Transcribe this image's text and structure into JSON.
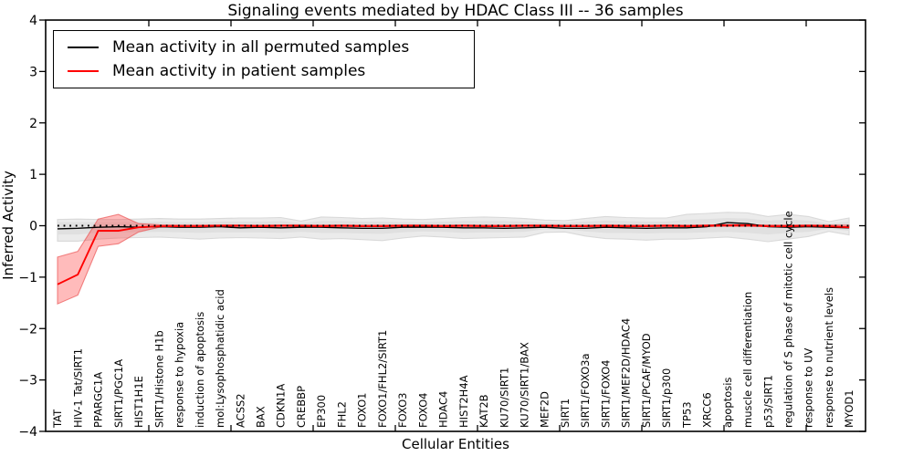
{
  "title": "Signaling events mediated by HDAC Class III -- 36 samples",
  "legend": {
    "entries": [
      {
        "label": "Mean activity in all permuted samples",
        "color": "#000000"
      },
      {
        "label": "Mean activity in patient samples",
        "color": "#ff0000"
      }
    ],
    "position": "upper left"
  },
  "axes": {
    "xlabel": "Cellular Entities",
    "ylabel": "Inferred Activity",
    "yticks": [
      4,
      3,
      2,
      1,
      0,
      -1,
      -2,
      -3,
      -4
    ],
    "ylim": [
      -4,
      4
    ],
    "grid": false
  },
  "chart_data": {
    "type": "line",
    "title": "Signaling events mediated by HDAC Class III -- 36 samples",
    "xlabel": "Cellular Entities",
    "ylabel": "Inferred Activity",
    "ylim": [
      -4,
      4
    ],
    "zero_line": 0,
    "categories": [
      "TAT",
      "HIV-1 Tat/SIRT1",
      "PPARGC1A",
      "SIRT1/PGC1A",
      "HIST1H1E",
      "SIRT1/Histone H1b",
      "response to hypoxia",
      "induction of apoptosis",
      "mol:Lysophosphatidic acid",
      "ACSS2",
      "BAX",
      "CDKN1A",
      "CREBBP",
      "EP300",
      "FHL2",
      "FOXO1",
      "FOXO1/FHL2/SIRT1",
      "FOXO3",
      "FOXO4",
      "HDAC4",
      "HIST2H4A",
      "KAT2B",
      "KU70/SIRT1",
      "KU70/SIRT1/BAX",
      "MEF2D",
      "SIRT1",
      "SIRT1/FOXO3a",
      "SIRT1/FOXO4",
      "SIRT1/MEF2D/HDAC4",
      "SIRT1/PCAF/MYOD",
      "SIRT1/p300",
      "TP53",
      "XRCC6",
      "apoptosis",
      "muscle cell differentiation",
      "p53/SIRT1",
      "regulation of S phase of mitotic cell cycle",
      "response to UV",
      "response to nutrient levels",
      "MYOD1"
    ],
    "series": [
      {
        "name": "Mean activity in all permuted samples",
        "color": "#000000",
        "values": [
          -0.06,
          -0.05,
          -0.03,
          -0.02,
          -0.03,
          -0.02,
          -0.03,
          -0.03,
          -0.02,
          -0.04,
          -0.03,
          -0.04,
          -0.03,
          -0.03,
          -0.04,
          -0.05,
          -0.05,
          -0.03,
          -0.03,
          -0.03,
          -0.04,
          -0.04,
          -0.05,
          -0.04,
          -0.03,
          -0.05,
          -0.05,
          -0.03,
          -0.04,
          -0.05,
          -0.04,
          -0.04,
          -0.02,
          0.06,
          0.04,
          -0.02,
          -0.03,
          -0.02,
          -0.03,
          -0.04
        ]
      },
      {
        "name": "Mean activity in patient samples",
        "color": "#ff0000",
        "values": [
          -1.14,
          -0.95,
          -0.1,
          -0.1,
          -0.03,
          -0.01,
          -0.01,
          -0.01,
          0,
          0,
          -0.01,
          0,
          0,
          -0.01,
          0,
          -0.01,
          -0.01,
          0,
          0,
          -0.01,
          0,
          -0.01,
          -0.01,
          0,
          0,
          -0.01,
          -0.01,
          0,
          -0.01,
          -0.01,
          0,
          -0.01,
          0,
          0.01,
          0.01,
          -0.01,
          -0.01,
          0,
          -0.01,
          -0.03
        ]
      }
    ],
    "bands": [
      {
        "name": "permuted-samples-range-outer",
        "fill": "#ebebeb",
        "edge": "#d9d9d9",
        "upper": [
          0.12,
          0.13,
          0.12,
          0.12,
          0.13,
          0.14,
          0.13,
          0.13,
          0.14,
          0.15,
          0.15,
          0.16,
          0.09,
          0.17,
          0.16,
          0.14,
          0.15,
          0.13,
          0.12,
          0.14,
          0.16,
          0.17,
          0.16,
          0.14,
          0.11,
          0.1,
          0.14,
          0.18,
          0.16,
          0.15,
          0.15,
          0.22,
          0.24,
          0.26,
          0.25,
          0.18,
          0.22,
          0.18,
          0.08,
          0.15
        ],
        "lower": [
          -0.3,
          -0.3,
          -0.26,
          -0.24,
          -0.23,
          -0.22,
          -0.24,
          -0.26,
          -0.24,
          -0.23,
          -0.24,
          -0.25,
          -0.22,
          -0.26,
          -0.25,
          -0.27,
          -0.29,
          -0.24,
          -0.2,
          -0.22,
          -0.25,
          -0.24,
          -0.23,
          -0.22,
          -0.13,
          -0.12,
          -0.2,
          -0.25,
          -0.26,
          -0.28,
          -0.26,
          -0.26,
          -0.24,
          -0.22,
          -0.26,
          -0.31,
          -0.26,
          -0.21,
          -0.11,
          -0.18
        ]
      },
      {
        "name": "permuted-samples-range-inner",
        "fill": "#e0e0e0",
        "edge": "none",
        "upper": [
          0.07,
          0.07,
          0.07,
          0.07,
          0.07,
          0.08,
          0.07,
          0.07,
          0.08,
          0.08,
          0.08,
          0.09,
          0.05,
          0.09,
          0.09,
          0.08,
          0.08,
          0.07,
          0.07,
          0.08,
          0.09,
          0.09,
          0.09,
          0.08,
          0.06,
          0.06,
          0.08,
          0.1,
          0.09,
          0.08,
          0.08,
          0.12,
          0.13,
          0.15,
          0.14,
          0.1,
          0.12,
          0.1,
          0.04,
          0.08
        ],
        "lower": [
          -0.17,
          -0.17,
          -0.14,
          -0.13,
          -0.13,
          -0.12,
          -0.13,
          -0.14,
          -0.13,
          -0.13,
          -0.13,
          -0.14,
          -0.12,
          -0.14,
          -0.14,
          -0.15,
          -0.16,
          -0.13,
          -0.11,
          -0.12,
          -0.14,
          -0.13,
          -0.13,
          -0.12,
          -0.07,
          -0.07,
          -0.11,
          -0.14,
          -0.14,
          -0.15,
          -0.14,
          -0.14,
          -0.13,
          -0.12,
          -0.14,
          -0.17,
          -0.14,
          -0.12,
          -0.06,
          -0.1
        ]
      },
      {
        "name": "patient-samples-range",
        "fill": "rgba(255,45,45,0.32)",
        "edge": "rgba(235,85,85,0.7)",
        "upper": [
          -0.61,
          -0.5,
          0.13,
          0.22,
          0.04,
          0.02,
          0.015,
          0.015,
          0.015,
          0.015,
          0.015,
          0.015,
          0.015,
          0.015,
          0.015,
          0.015,
          0.015,
          0.015,
          0.015,
          0.015,
          0.015,
          0.015,
          0.015,
          0.015,
          0.015,
          0.015,
          0.015,
          0.015,
          0.015,
          0.015,
          0.015,
          0.015,
          0.015,
          0.02,
          0.02,
          0.015,
          0.015,
          0.015,
          0.015,
          0.01
        ],
        "lower": [
          -1.52,
          -1.35,
          -0.4,
          -0.35,
          -0.12,
          -0.03,
          -0.015,
          -0.015,
          -0.015,
          -0.015,
          -0.015,
          -0.015,
          -0.015,
          -0.015,
          -0.015,
          -0.015,
          -0.015,
          -0.015,
          -0.015,
          -0.015,
          -0.015,
          -0.015,
          -0.015,
          -0.015,
          -0.015,
          -0.015,
          -0.015,
          -0.015,
          -0.015,
          -0.015,
          -0.015,
          -0.015,
          -0.015,
          -0.015,
          -0.015,
          -0.015,
          -0.015,
          -0.015,
          -0.015,
          -0.04
        ]
      }
    ]
  }
}
